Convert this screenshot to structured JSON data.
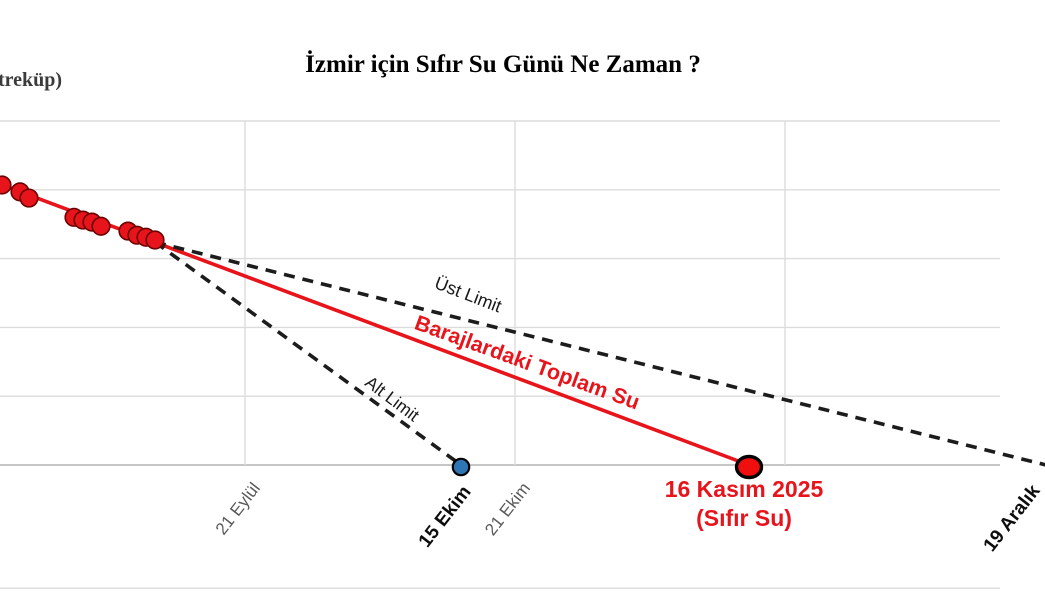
{
  "title": "İzmir için Sıfır Su Günü Ne Zaman ?",
  "y_axis_label_fragment": "treküp)",
  "colors": {
    "series_red": "#e8141c",
    "point_border": "#6b0000",
    "final_marker_fill": "#f10e0e",
    "blue_marker_fill": "#2e75b6",
    "marker_black_border": "#000000",
    "dashed_line": "#1c1c1c",
    "gridline": "#dcdcdc",
    "axis_line": "#c6c6c6",
    "tick_gray": "#595959",
    "tick_black": "#0d0d0d",
    "annotation_red": "#e8141c"
  },
  "annotations": {
    "ust_limit": "Üst Limit",
    "alt_limit": "Alt Limit",
    "toplam_su": "Barajlardaki Toplam Su",
    "sifir_line1": "16 Kasım 2025",
    "sifir_line2": "(Sıfır Su)"
  },
  "chart_data": {
    "type": "scatter",
    "title": "İzmir için Sıfır Su Günü Ne Zaman ?",
    "xlabel": "",
    "ylabel": "treküp) — visible fragment of y-axis title (milyon metreküp), numeric y ticks cropped out of frame",
    "x_unit": "days (day 0 ≈ 25 Ağustos 2025, calibrated from the 21 Eylül / 21 Ekim gridlines)",
    "y_unit": "reservoir volume in gridline units (1 unit = one horizontal gridline step; absolute values cropped)",
    "grid": true,
    "legend": false,
    "x_gridline_days": [
      27,
      57,
      87
    ],
    "y_gridline_units": [
      -1.79,
      0,
      1,
      2,
      3,
      4,
      5
    ],
    "observed_series": {
      "name": "Barajlardaki Toplam Su (gözlenen)",
      "points": [
        {
          "day": 0,
          "value": 4.07
        },
        {
          "day": 2,
          "value": 3.97
        },
        {
          "day": 3,
          "value": 3.88
        },
        {
          "day": 8,
          "value": 3.6
        },
        {
          "day": 9,
          "value": 3.56
        },
        {
          "day": 10,
          "value": 3.53
        },
        {
          "day": 11,
          "value": 3.47
        },
        {
          "day": 14,
          "value": 3.4
        },
        {
          "day": 15,
          "value": 3.34
        },
        {
          "day": 16,
          "value": 3.31
        },
        {
          "day": 17,
          "value": 3.27
        }
      ]
    },
    "lines": [
      {
        "name": "barajlardaki-toplam-su",
        "style": "solid",
        "from": {
          "day": 0,
          "value": 4.07
        },
        "to": {
          "day": 83,
          "value": 0
        },
        "zero_date": "16 Kasım 2025"
      },
      {
        "name": "ust-limit",
        "style": "dashed",
        "from": {
          "day": 17,
          "value": 3.24
        },
        "to": {
          "day": 116,
          "value": 0
        },
        "zero_date": "19 Aralık"
      },
      {
        "name": "alt-limit",
        "style": "dashed",
        "from": {
          "day": 17,
          "value": 3.24
        },
        "to": {
          "day": 51,
          "value": 0
        },
        "zero_date": "15 Ekim"
      }
    ],
    "markers": [
      {
        "name": "alt-limit-zero-marker",
        "day": 51,
        "value": 0,
        "shape": "circle",
        "fill": "blue",
        "label": "15 Ekim"
      },
      {
        "name": "sifir-su-marker",
        "day": 83,
        "value": 0,
        "shape": "big-ellipse",
        "fill": "red",
        "label": "16 Kasım 2025 (Sıfır Su)"
      }
    ],
    "x_ticks": [
      {
        "label": "21 Eylül",
        "day": 27,
        "emphasis": "gray"
      },
      {
        "label": "15 Ekim",
        "day": 51,
        "emphasis": "bold"
      },
      {
        "label": "21 Ekim",
        "day": 57,
        "emphasis": "gray"
      },
      {
        "label": "19 Aralık",
        "day": 116,
        "emphasis": "bold"
      }
    ]
  }
}
